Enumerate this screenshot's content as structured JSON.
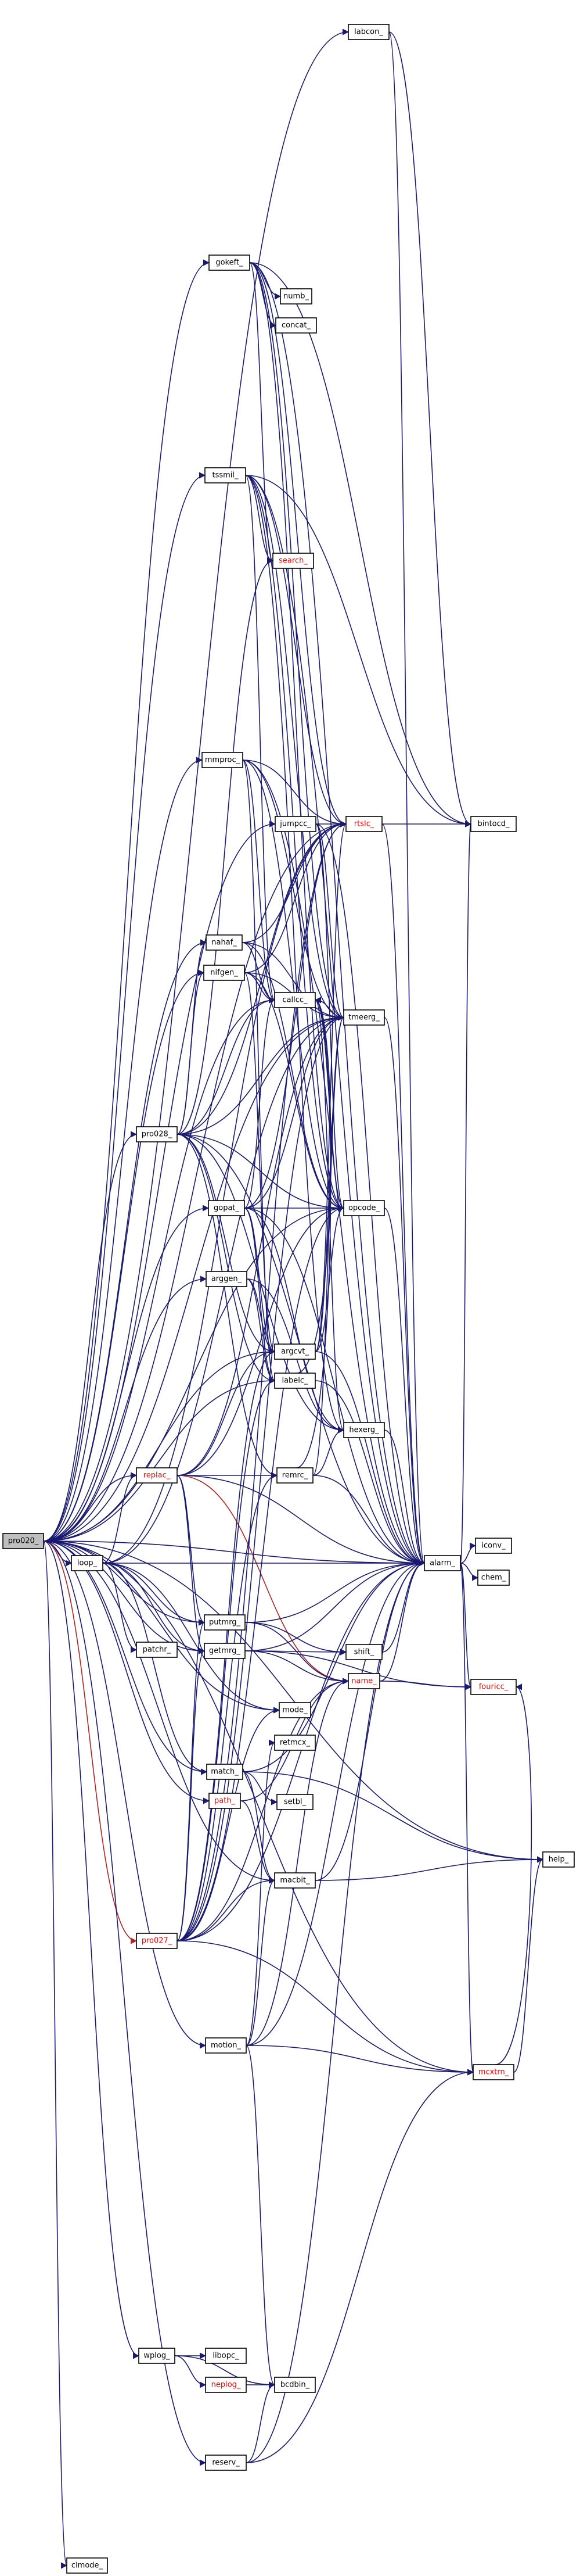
{
  "colors": {
    "edge": "#191970",
    "edge_highlight": "#b22222",
    "node_fill": "#ffffff",
    "root_fill": "#bfbfbf",
    "node_border": "#000000",
    "text": "#000000",
    "text_link_broken": "#ff0000"
  },
  "nodes": [
    {
      "id": "pro020",
      "label": "pro020_",
      "root": true
    },
    {
      "id": "labcon",
      "label": "labcon_"
    },
    {
      "id": "gokeft",
      "label": "gokeft_"
    },
    {
      "id": "numb",
      "label": "numb_"
    },
    {
      "id": "concat",
      "label": "concat_"
    },
    {
      "id": "tssmil",
      "label": "tssmil_"
    },
    {
      "id": "search",
      "label": "search_",
      "red": true
    },
    {
      "id": "mmproc",
      "label": "mmproc_"
    },
    {
      "id": "jumpcc",
      "label": "jumpcc_"
    },
    {
      "id": "rtslc",
      "label": "rtslc_",
      "red": true
    },
    {
      "id": "bintocd",
      "label": "bintocd_"
    },
    {
      "id": "nahaf",
      "label": "nahaf_"
    },
    {
      "id": "nifgen",
      "label": "nifgen_"
    },
    {
      "id": "callcc",
      "label": "callcc_"
    },
    {
      "id": "tmeerg",
      "label": "tmeerg_"
    },
    {
      "id": "pro028",
      "label": "pro028_"
    },
    {
      "id": "gopat",
      "label": "gopat_"
    },
    {
      "id": "opcode",
      "label": "opcode_"
    },
    {
      "id": "arggen",
      "label": "arggen_"
    },
    {
      "id": "argcvt",
      "label": "argcvt_"
    },
    {
      "id": "labelc",
      "label": "labelc_"
    },
    {
      "id": "hexerg",
      "label": "hexerg_"
    },
    {
      "id": "replac",
      "label": "replac_",
      "red": true
    },
    {
      "id": "remrc",
      "label": "remrc_"
    },
    {
      "id": "loop",
      "label": "loop_"
    },
    {
      "id": "alarm",
      "label": "alarm_"
    },
    {
      "id": "iconv",
      "label": "iconv_"
    },
    {
      "id": "chem",
      "label": "chem_"
    },
    {
      "id": "putmrg",
      "label": "putmrg_"
    },
    {
      "id": "getmrg",
      "label": "getmrg_"
    },
    {
      "id": "patchr",
      "label": "patchr_"
    },
    {
      "id": "shift",
      "label": "shift_"
    },
    {
      "id": "name",
      "label": "name_",
      "red": true
    },
    {
      "id": "fouricc",
      "label": "fouricc_",
      "red": true
    },
    {
      "id": "mode",
      "label": "mode_"
    },
    {
      "id": "retmcx",
      "label": "retmcx_"
    },
    {
      "id": "match",
      "label": "match_"
    },
    {
      "id": "path",
      "label": "path_",
      "red": true
    },
    {
      "id": "setbl",
      "label": "setbl_"
    },
    {
      "id": "help",
      "label": "help_"
    },
    {
      "id": "macbit",
      "label": "macbit_"
    },
    {
      "id": "pro027",
      "label": "pro027_",
      "red": true
    },
    {
      "id": "motion",
      "label": "motion_"
    },
    {
      "id": "mcxtrn",
      "label": "mcxtrn_",
      "red": true
    },
    {
      "id": "wplog",
      "label": "wplog_"
    },
    {
      "id": "libopc",
      "label": "libopc_"
    },
    {
      "id": "neplog",
      "label": "neplog_",
      "red": true
    },
    {
      "id": "bcdbin",
      "label": "bcdbin_"
    },
    {
      "id": "reserv",
      "label": "reserv_"
    },
    {
      "id": "clmode",
      "label": "clmode_"
    }
  ],
  "edges": [
    [
      "pro020",
      "labcon"
    ],
    [
      "pro020",
      "gokeft"
    ],
    [
      "pro020",
      "tssmil"
    ],
    [
      "pro020",
      "mmproc"
    ],
    [
      "pro020",
      "jumpcc"
    ],
    [
      "pro020",
      "rtslc"
    ],
    [
      "pro020",
      "nahaf"
    ],
    [
      "pro020",
      "nifgen"
    ],
    [
      "pro020",
      "callcc"
    ],
    [
      "pro020",
      "tmeerg"
    ],
    [
      "pro020",
      "pro028"
    ],
    [
      "pro020",
      "gopat"
    ],
    [
      "pro020",
      "opcode"
    ],
    [
      "pro020",
      "arggen"
    ],
    [
      "pro020",
      "argcvt"
    ],
    [
      "pro020",
      "labelc"
    ],
    [
      "pro020",
      "replac"
    ],
    [
      "pro020",
      "loop"
    ],
    [
      "pro020",
      "alarm"
    ],
    [
      "pro020",
      "putmrg"
    ],
    [
      "pro020",
      "getmrg"
    ],
    [
      "pro020",
      "mode"
    ],
    [
      "pro020",
      "match"
    ],
    [
      "pro020",
      "path"
    ],
    [
      "pro020",
      "macbit"
    ],
    [
      "pro020",
      "pro027"
    ],
    [
      "pro020",
      "motion"
    ],
    [
      "pro020",
      "mcxtrn"
    ],
    [
      "pro020",
      "wplog"
    ],
    [
      "pro020",
      "reserv"
    ],
    [
      "pro020",
      "clmode"
    ],
    [
      "pro020",
      "help"
    ],
    [
      "labcon",
      "alarm"
    ],
    [
      "labcon",
      "bintocd"
    ],
    [
      "gokeft",
      "numb"
    ],
    [
      "gokeft",
      "concat"
    ],
    [
      "gokeft",
      "search"
    ],
    [
      "gokeft",
      "rtslc"
    ],
    [
      "gokeft",
      "tmeerg"
    ],
    [
      "gokeft",
      "alarm"
    ],
    [
      "gokeft",
      "opcode"
    ],
    [
      "gokeft",
      "bintocd"
    ],
    [
      "tssmil",
      "search"
    ],
    [
      "tssmil",
      "rtslc"
    ],
    [
      "tssmil",
      "tmeerg"
    ],
    [
      "tssmil",
      "opcode"
    ],
    [
      "tssmil",
      "alarm"
    ],
    [
      "tssmil",
      "bintocd"
    ],
    [
      "tssmil",
      "callcc"
    ],
    [
      "tssmil",
      "hexerg"
    ],
    [
      "mmproc",
      "rtslc"
    ],
    [
      "mmproc",
      "tmeerg"
    ],
    [
      "mmproc",
      "callcc"
    ],
    [
      "mmproc",
      "alarm"
    ],
    [
      "mmproc",
      "opcode"
    ],
    [
      "mmproc",
      "labelc"
    ],
    [
      "jumpcc",
      "rtslc"
    ],
    [
      "jumpcc",
      "tmeerg"
    ],
    [
      "jumpcc",
      "opcode"
    ],
    [
      "jumpcc",
      "alarm"
    ],
    [
      "rtslc",
      "bintocd"
    ],
    [
      "rtslc",
      "alarm"
    ],
    [
      "nahaf",
      "callcc"
    ],
    [
      "nahaf",
      "tmeerg"
    ],
    [
      "nahaf",
      "rtslc"
    ],
    [
      "nahaf",
      "opcode"
    ],
    [
      "nifgen",
      "callcc"
    ],
    [
      "nifgen",
      "tmeerg"
    ],
    [
      "nifgen",
      "rtslc"
    ],
    [
      "nifgen",
      "opcode"
    ],
    [
      "nifgen",
      "argcvt"
    ],
    [
      "callcc",
      "tmeerg"
    ],
    [
      "callcc",
      "opcode"
    ],
    [
      "callcc",
      "hexerg"
    ],
    [
      "tmeerg",
      "alarm"
    ],
    [
      "pro028",
      "nahaf"
    ],
    [
      "pro028",
      "nifgen"
    ],
    [
      "pro028",
      "callcc"
    ],
    [
      "pro028",
      "tmeerg"
    ],
    [
      "pro028",
      "opcode"
    ],
    [
      "pro028",
      "argcvt"
    ],
    [
      "pro028",
      "labelc"
    ],
    [
      "pro028",
      "remrc"
    ],
    [
      "pro028",
      "hexerg"
    ],
    [
      "pro028",
      "rtslc"
    ],
    [
      "pro028",
      "alarm"
    ],
    [
      "pro028",
      "search"
    ],
    [
      "gopat",
      "argcvt"
    ],
    [
      "gopat",
      "labelc"
    ],
    [
      "gopat",
      "hexerg"
    ],
    [
      "gopat",
      "opcode"
    ],
    [
      "gopat",
      "tmeerg"
    ],
    [
      "gopat",
      "rtslc"
    ],
    [
      "gopat",
      "alarm"
    ],
    [
      "gopat",
      "callcc"
    ],
    [
      "opcode",
      "alarm"
    ],
    [
      "arggen",
      "argcvt"
    ],
    [
      "arggen",
      "labelc"
    ],
    [
      "arggen",
      "hexerg"
    ],
    [
      "argcvt",
      "tmeerg"
    ],
    [
      "argcvt",
      "opcode"
    ],
    [
      "argcvt",
      "rtslc"
    ],
    [
      "argcvt",
      "alarm"
    ],
    [
      "labelc",
      "alarm"
    ],
    [
      "labelc",
      "callcc"
    ],
    [
      "hexerg",
      "alarm"
    ],
    [
      "replac",
      "remrc"
    ],
    [
      "replac",
      "argcvt"
    ],
    [
      "replac",
      "alarm"
    ],
    [
      "replac",
      "putmrg"
    ],
    [
      "replac",
      "getmrg"
    ],
    [
      "replac",
      "name"
    ],
    [
      "replac",
      "opcode"
    ],
    [
      "replac",
      "tmeerg"
    ],
    [
      "remrc",
      "alarm"
    ],
    [
      "remrc",
      "tmeerg"
    ],
    [
      "remrc",
      "callcc"
    ],
    [
      "remrc",
      "hexerg"
    ],
    [
      "loop",
      "replac"
    ],
    [
      "loop",
      "putmrg"
    ],
    [
      "loop",
      "getmrg"
    ],
    [
      "loop",
      "patchr"
    ],
    [
      "loop",
      "alarm"
    ],
    [
      "loop",
      "mode"
    ],
    [
      "loop",
      "match"
    ],
    [
      "loop",
      "rtslc"
    ],
    [
      "loop",
      "tmeerg"
    ],
    [
      "alarm",
      "iconv"
    ],
    [
      "alarm",
      "chem"
    ],
    [
      "alarm",
      "fouricc"
    ],
    [
      "alarm",
      "mcxtrn"
    ],
    [
      "alarm",
      "bintocd"
    ],
    [
      "putmrg",
      "name"
    ],
    [
      "putmrg",
      "alarm"
    ],
    [
      "putmrg",
      "shift"
    ],
    [
      "getmrg",
      "name"
    ],
    [
      "getmrg",
      "shift"
    ],
    [
      "getmrg",
      "alarm"
    ],
    [
      "getmrg",
      "fouricc"
    ],
    [
      "shift",
      "alarm"
    ],
    [
      "name",
      "fouricc"
    ],
    [
      "name",
      "alarm"
    ],
    [
      "match",
      "macbit"
    ],
    [
      "match",
      "setbl"
    ],
    [
      "match",
      "help"
    ],
    [
      "match",
      "alarm"
    ],
    [
      "path",
      "macbit"
    ],
    [
      "path",
      "name"
    ],
    [
      "macbit",
      "alarm"
    ],
    [
      "macbit",
      "help"
    ],
    [
      "pro027",
      "macbit"
    ],
    [
      "pro027",
      "getmrg"
    ],
    [
      "pro027",
      "putmrg"
    ],
    [
      "pro027",
      "argcvt"
    ],
    [
      "pro027",
      "labelc"
    ],
    [
      "pro027",
      "remrc"
    ],
    [
      "pro027",
      "alarm"
    ],
    [
      "pro027",
      "mcxtrn"
    ],
    [
      "pro027",
      "opcode"
    ],
    [
      "pro027",
      "tmeerg"
    ],
    [
      "pro027",
      "rtslc"
    ],
    [
      "pro027",
      "name"
    ],
    [
      "pro027",
      "mode"
    ],
    [
      "motion",
      "mcxtrn"
    ],
    [
      "motion",
      "alarm"
    ],
    [
      "motion",
      "macbit"
    ],
    [
      "motion",
      "name"
    ],
    [
      "motion",
      "retmcx"
    ],
    [
      "motion",
      "bcdbin"
    ],
    [
      "mcxtrn",
      "help"
    ],
    [
      "mcxtrn",
      "fouricc"
    ],
    [
      "wplog",
      "libopc"
    ],
    [
      "wplog",
      "neplog"
    ],
    [
      "wplog",
      "bcdbin"
    ],
    [
      "neplog",
      "bcdbin"
    ],
    [
      "reserv",
      "bcdbin"
    ],
    [
      "reserv",
      "mcxtrn"
    ],
    [
      "reserv",
      "alarm"
    ]
  ]
}
